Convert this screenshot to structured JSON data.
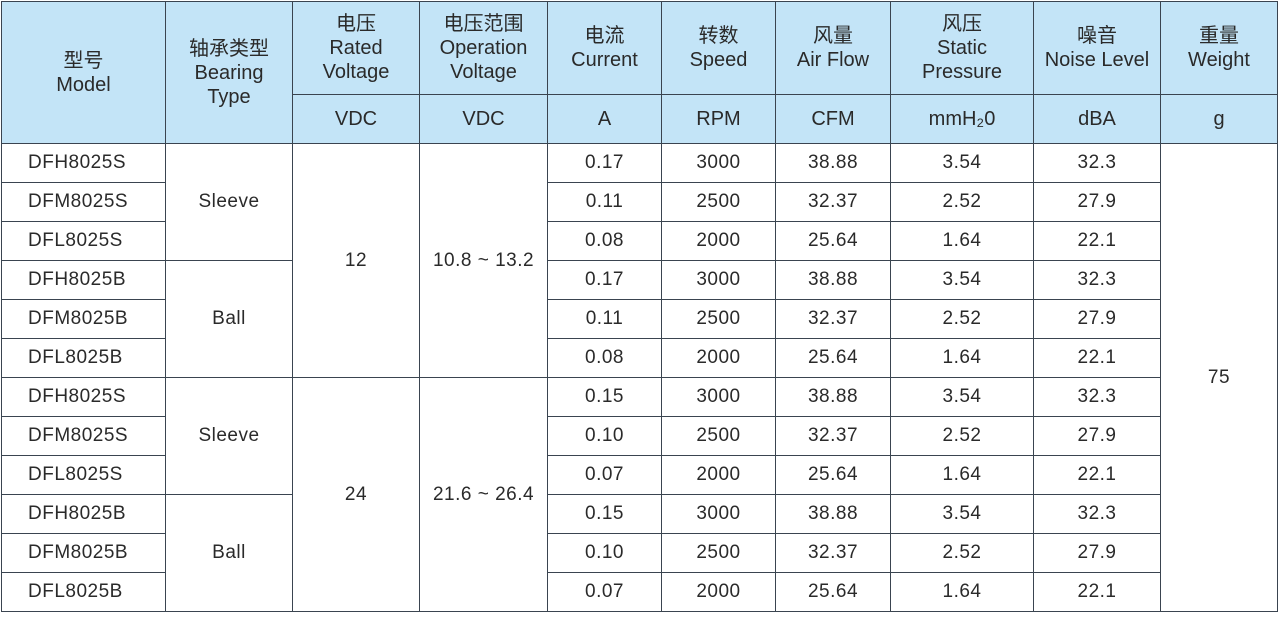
{
  "table": {
    "headers": [
      {
        "lines": [
          "型号",
          "Model"
        ]
      },
      {
        "lines": [
          "轴承类型",
          "Bearing",
          "Type"
        ]
      },
      {
        "lines": [
          "电压",
          "Rated",
          "Voltage"
        ]
      },
      {
        "lines": [
          "电压范围",
          "Operation",
          "Voltage"
        ]
      },
      {
        "lines": [
          "电流",
          "Current"
        ]
      },
      {
        "lines": [
          "转数",
          "Speed"
        ]
      },
      {
        "lines": [
          "风量",
          "Air Flow"
        ]
      },
      {
        "lines": [
          "风压",
          "Static",
          "Pressure"
        ]
      },
      {
        "lines": [
          "噪音",
          "Noise Level"
        ]
      },
      {
        "lines": [
          "重量",
          "Weight"
        ]
      }
    ],
    "units": [
      "VDC",
      "VDC",
      "A",
      "RPM",
      "CFM",
      "mmH₂0",
      "dBA",
      "g"
    ],
    "groups": [
      {
        "voltage": "12",
        "range": "10.8 ~ 13.2",
        "bearings": [
          {
            "type": "Sleeve",
            "rows": [
              [
                "DFH8025S",
                "0.17",
                "3000",
                "38.88",
                "3.54",
                "32.3"
              ],
              [
                "DFM8025S",
                "0.11",
                "2500",
                "32.37",
                "2.52",
                "27.9"
              ],
              [
                "DFL8025S",
                "0.08",
                "2000",
                "25.64",
                "1.64",
                "22.1"
              ]
            ]
          },
          {
            "type": "Ball",
            "rows": [
              [
                "DFH8025B",
                "0.17",
                "3000",
                "38.88",
                "3.54",
                "32.3"
              ],
              [
                "DFM8025B",
                "0.11",
                "2500",
                "32.37",
                "2.52",
                "27.9"
              ],
              [
                "DFL8025B",
                "0.08",
                "2000",
                "25.64",
                "1.64",
                "22.1"
              ]
            ]
          }
        ]
      },
      {
        "voltage": "24",
        "range": "21.6 ~ 26.4",
        "bearings": [
          {
            "type": "Sleeve",
            "rows": [
              [
                "DFH8025S",
                "0.15",
                "3000",
                "38.88",
                "3.54",
                "32.3"
              ],
              [
                "DFM8025S",
                "0.10",
                "2500",
                "32.37",
                "2.52",
                "27.9"
              ],
              [
                "DFL8025S",
                "0.07",
                "2000",
                "25.64",
                "1.64",
                "22.1"
              ]
            ]
          },
          {
            "type": "Ball",
            "rows": [
              [
                "DFH8025B",
                "0.15",
                "3000",
                "38.88",
                "3.54",
                "32.3"
              ],
              [
                "DFM8025B",
                "0.10",
                "2500",
                "32.37",
                "2.52",
                "27.9"
              ],
              [
                "DFL8025B",
                "0.07",
                "2000",
                "25.64",
                "1.64",
                "22.1"
              ]
            ]
          }
        ]
      }
    ],
    "weight": "75"
  }
}
